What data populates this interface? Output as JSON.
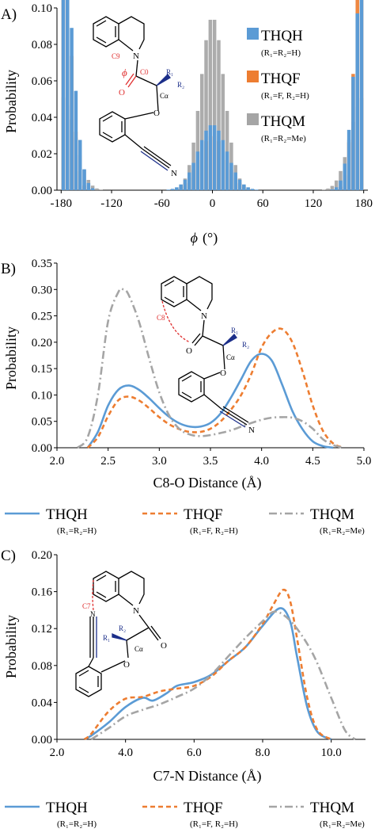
{
  "panels": {
    "a": {
      "label": "A)",
      "ylabel": "Probability",
      "xlabel_symbol": "ϕ",
      "xlabel_unit": "(°)"
    },
    "b": {
      "label": "B)",
      "ylabel": "Probability",
      "xlabel": "C8-O Distance (Å)"
    },
    "c": {
      "label": "C)",
      "ylabel": "Probability",
      "xlabel": "C7-N Distance (Å)"
    }
  },
  "legend": {
    "thqh": {
      "name": "THQH",
      "sub": "(R1=R2=H)"
    },
    "thqf": {
      "name": "THQF",
      "sub": "(R1=F, R2=H)"
    },
    "thqm": {
      "name": "THQM",
      "sub": "(R1=R2=Me)"
    }
  },
  "structures": {
    "a": {
      "n": "N",
      "o1": "O",
      "o2": "O",
      "c9": "C9",
      "c0": "C0",
      "phi": "ϕ",
      "r1": "R1",
      "r2": "R2",
      "ca": "Cα",
      "n2": "N"
    },
    "b": {
      "n": "N",
      "o1": "O",
      "o2": "O",
      "c8": "C8",
      "r1": "R1",
      "r2": "R2",
      "ca": "Cα",
      "n2": "N"
    },
    "c": {
      "n": "N",
      "o1": "O",
      "o2": "O",
      "c7": "C7",
      "r1": "R1",
      "r2": "R2",
      "ca": "Cα",
      "n2": "N"
    }
  },
  "colors": {
    "thqh": "#5b9bd5",
    "thqf": "#ed7d31",
    "thqm": "#a5a5a5"
  },
  "chart_data": [
    {
      "type": "bar",
      "panel": "A",
      "xlabel": "ϕ (°)",
      "ylabel": "Probability",
      "xlim": [
        -185,
        185
      ],
      "ylim": [
        0,
        0.1
      ],
      "xticks": [
        -180,
        -120,
        -60,
        0,
        60,
        120,
        180
      ],
      "yticks": [
        0.0,
        0.02,
        0.04,
        0.06,
        0.08,
        0.1
      ],
      "legend_position": "top-right",
      "series": [
        {
          "name": "THQH",
          "peaks": [
            {
              "center": -175,
              "width": 11,
              "height": 0.079
            },
            {
              "center": 178,
              "width": 11,
              "height": 0.063
            },
            {
              "center": 0,
              "width": 17,
              "height": 0.036
            }
          ]
        },
        {
          "name": "THQF",
          "peaks": [
            {
              "center": -177,
              "width": 9,
              "height": 0.087
            },
            {
              "center": 178,
              "width": 9,
              "height": 0.087
            },
            {
              "center": 0,
              "width": 16,
              "height": 0.03
            }
          ]
        },
        {
          "name": "THQM",
          "peaks": [
            {
              "center": -172,
              "width": 13,
              "height": 0.032
            },
            {
              "center": 172,
              "width": 13,
              "height": 0.03
            },
            {
              "center": 0,
              "width": 14,
              "height": 0.095
            }
          ]
        }
      ]
    },
    {
      "type": "line",
      "panel": "B",
      "xlabel": "C8-O Distance (Å)",
      "ylabel": "Probability",
      "xlim": [
        2.0,
        5.0
      ],
      "ylim": [
        0,
        0.35
      ],
      "xticks": [
        2.0,
        2.5,
        3.0,
        3.5,
        4.0,
        4.5,
        5.0
      ],
      "yticks": [
        0.0,
        0.05,
        0.1,
        0.15,
        0.2,
        0.25,
        0.3,
        0.35
      ],
      "legend_position": "bottom",
      "series": [
        {
          "name": "THQH",
          "x": [
            2.3,
            2.4,
            2.5,
            2.6,
            2.7,
            2.8,
            2.9,
            3.0,
            3.1,
            3.2,
            3.3,
            3.4,
            3.5,
            3.6,
            3.7,
            3.8,
            3.9,
            4.0,
            4.1,
            4.2,
            4.3,
            4.4,
            4.5,
            4.6,
            4.7
          ],
          "y": [
            0.0,
            0.03,
            0.08,
            0.11,
            0.118,
            0.11,
            0.094,
            0.075,
            0.058,
            0.046,
            0.04,
            0.04,
            0.047,
            0.065,
            0.095,
            0.13,
            0.165,
            0.178,
            0.165,
            0.12,
            0.07,
            0.035,
            0.012,
            0.003,
            0.0
          ]
        },
        {
          "name": "THQF",
          "x": [
            2.3,
            2.4,
            2.5,
            2.6,
            2.7,
            2.8,
            2.9,
            3.0,
            3.1,
            3.2,
            3.3,
            3.4,
            3.5,
            3.6,
            3.7,
            3.8,
            3.9,
            4.0,
            4.1,
            4.2,
            4.3,
            4.4,
            4.5,
            4.6,
            4.7,
            4.8
          ],
          "y": [
            0.0,
            0.02,
            0.06,
            0.09,
            0.097,
            0.09,
            0.075,
            0.058,
            0.044,
            0.035,
            0.03,
            0.03,
            0.036,
            0.05,
            0.072,
            0.1,
            0.14,
            0.19,
            0.218,
            0.225,
            0.2,
            0.145,
            0.08,
            0.032,
            0.008,
            0.0
          ]
        },
        {
          "name": "THQM",
          "x": [
            2.2,
            2.3,
            2.4,
            2.5,
            2.6,
            2.65,
            2.7,
            2.8,
            2.9,
            3.0,
            3.1,
            3.2,
            3.3,
            3.4,
            3.5,
            3.6,
            3.7,
            3.8,
            3.9,
            4.0,
            4.1,
            4.2,
            4.3,
            4.4,
            4.5,
            4.6,
            4.7,
            4.8
          ],
          "y": [
            0.0,
            0.02,
            0.1,
            0.24,
            0.295,
            0.3,
            0.29,
            0.24,
            0.17,
            0.105,
            0.06,
            0.035,
            0.025,
            0.022,
            0.024,
            0.028,
            0.033,
            0.04,
            0.047,
            0.053,
            0.057,
            0.058,
            0.057,
            0.05,
            0.036,
            0.016,
            0.005,
            0.0
          ]
        }
      ]
    },
    {
      "type": "line",
      "panel": "C",
      "xlabel": "C7-N Distance (Å)",
      "ylabel": "Probability",
      "xlim": [
        2.0,
        11.0
      ],
      "ylim": [
        0,
        0.2
      ],
      "xticks": [
        2.0,
        4.0,
        6.0,
        8.0,
        10.0
      ],
      "yticks": [
        0.0,
        0.04,
        0.08,
        0.12,
        0.16,
        0.2
      ],
      "legend_position": "bottom",
      "series": [
        {
          "name": "THQH",
          "x": [
            2.8,
            3.0,
            3.5,
            4.0,
            4.5,
            4.8,
            5.2,
            5.5,
            6.0,
            6.5,
            7.0,
            7.5,
            8.0,
            8.5,
            8.8,
            9.0,
            9.3,
            9.6,
            10.0
          ],
          "y": [
            0.0,
            0.004,
            0.018,
            0.035,
            0.045,
            0.042,
            0.05,
            0.058,
            0.062,
            0.07,
            0.085,
            0.1,
            0.123,
            0.142,
            0.128,
            0.09,
            0.035,
            0.008,
            0.0
          ]
        },
        {
          "name": "THQF",
          "x": [
            2.8,
            3.0,
            3.5,
            4.0,
            4.5,
            5.0,
            5.5,
            6.0,
            6.5,
            7.0,
            7.5,
            8.0,
            8.3,
            8.6,
            8.8,
            9.0,
            9.3,
            9.6,
            10.0
          ],
          "y": [
            0.0,
            0.006,
            0.03,
            0.044,
            0.046,
            0.052,
            0.055,
            0.058,
            0.068,
            0.085,
            0.1,
            0.125,
            0.145,
            0.162,
            0.15,
            0.11,
            0.045,
            0.01,
            0.0
          ]
        },
        {
          "name": "THQM",
          "x": [
            3.0,
            3.5,
            4.0,
            4.5,
            5.0,
            5.5,
            6.0,
            6.5,
            7.0,
            7.5,
            8.0,
            8.3,
            8.6,
            9.0,
            9.5,
            10.0,
            10.4,
            10.7
          ],
          "y": [
            0.0,
            0.012,
            0.025,
            0.032,
            0.038,
            0.046,
            0.055,
            0.07,
            0.09,
            0.11,
            0.128,
            0.138,
            0.135,
            0.12,
            0.09,
            0.045,
            0.01,
            0.0
          ]
        }
      ]
    }
  ]
}
